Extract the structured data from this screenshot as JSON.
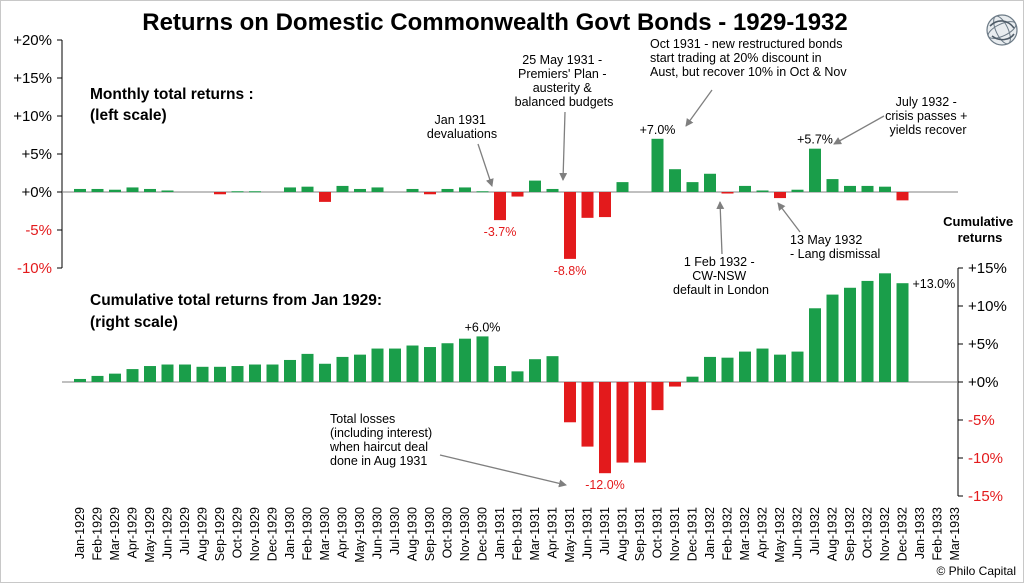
{
  "colors": {
    "positive": "#1a9e4a",
    "negative": "#e31a1c",
    "axis_red": "#e31a1c",
    "ticks_positive": "#000000",
    "annotation_arrow": "#7f7f7f",
    "zero_line": "#808080"
  },
  "logo_icon": "philo-capital-globe-icon",
  "chart_data": {
    "type": "bar",
    "title": "Returns on Domestic Commonwealth Govt Bonds  - 1929-1932",
    "credit": "© Philo Capital",
    "categories": [
      "Jan-1929",
      "Feb-1929",
      "Mar-1929",
      "Apr-1929",
      "May-1929",
      "Jun-1929",
      "Jul-1929",
      "Aug-1929",
      "Sep-1929",
      "Oct-1929",
      "Nov-1929",
      "Dec-1929",
      "Jan-1930",
      "Feb-1930",
      "Mar-1930",
      "Apr-1930",
      "May-1930",
      "Jun-1930",
      "Jul-1930",
      "Aug-1930",
      "Sep-1930",
      "Oct-1930",
      "Nov-1930",
      "Dec-1930",
      "Jan-1931",
      "Feb-1931",
      "Mar-1931",
      "Apr-1931",
      "May-1931",
      "Jun-1931",
      "Jul-1931",
      "Aug-1931",
      "Sep-1931",
      "Oct-1931",
      "Nov-1931",
      "Dec-1931",
      "Jan-1932",
      "Feb-1932",
      "Mar-1932",
      "Apr-1932",
      "May-1932",
      "Jun-1932",
      "Jul-1932",
      "Aug-1932",
      "Sep-1932",
      "Oct-1932",
      "Nov-1932",
      "Dec-1932",
      "Jan-1933",
      "Feb-1933",
      "Mar-1933"
    ],
    "series": [
      {
        "name": "Monthly total returns :",
        "axis": "left",
        "panel_label": [
          "Monthly total returns :",
          "(left scale)"
        ],
        "ylim": [
          -10,
          20
        ],
        "ticks": [
          "+20%",
          "+15%",
          "+10%",
          "+5%",
          "+0%",
          "-5%",
          "-10%"
        ],
        "tick_values": [
          20,
          15,
          10,
          5,
          0,
          -5,
          -10
        ],
        "values": [
          0.4,
          0.4,
          0.3,
          0.6,
          0.4,
          0.2,
          0.0,
          0.0,
          -0.3,
          0.1,
          0.1,
          0.0,
          0.6,
          0.7,
          -1.3,
          0.8,
          0.4,
          0.6,
          0.0,
          0.4,
          -0.3,
          0.4,
          0.6,
          0.1,
          -3.7,
          -0.6,
          1.5,
          0.4,
          -8.8,
          -3.4,
          -3.3,
          1.3,
          0.0,
          7.0,
          3.0,
          1.3,
          2.4,
          -0.2,
          0.8,
          0.2,
          -0.8,
          0.3,
          5.7,
          1.7,
          0.8,
          0.8,
          0.7,
          -1.1,
          null,
          null,
          null
        ]
      },
      {
        "name": "Cumulative total returns from Jan 1929:",
        "axis": "right",
        "panel_label": [
          "Cumulative total returns from Jan 1929:",
          "(right scale)"
        ],
        "axis_title": [
          "Cumulative",
          "returns"
        ],
        "ylim": [
          -15,
          15
        ],
        "ticks": [
          "+15%",
          "+10%",
          "+5%",
          "+0%",
          "-5%",
          "-10%",
          "-15%"
        ],
        "tick_values": [
          15,
          10,
          5,
          0,
          -5,
          -10,
          -15
        ],
        "values": [
          0.4,
          0.8,
          1.1,
          1.7,
          2.1,
          2.3,
          2.3,
          2.0,
          2.0,
          2.1,
          2.3,
          2.3,
          2.9,
          3.7,
          2.4,
          3.3,
          3.6,
          4.4,
          4.4,
          4.8,
          4.6,
          5.1,
          5.7,
          6.0,
          2.1,
          1.4,
          3.0,
          3.4,
          -5.3,
          -8.5,
          -12.0,
          -10.6,
          -10.6,
          -3.7,
          -0.6,
          0.7,
          3.3,
          3.2,
          4.0,
          4.4,
          3.6,
          4.0,
          9.7,
          11.5,
          12.4,
          13.3,
          14.3,
          13.0,
          null,
          null,
          null
        ]
      }
    ],
    "bar_labels": [
      {
        "series": 0,
        "index": 33,
        "text": "+7.0%"
      },
      {
        "series": 0,
        "index": 42,
        "text": "+5.7%"
      },
      {
        "series": 0,
        "index": 24,
        "text": "-3.7%"
      },
      {
        "series": 0,
        "index": 28,
        "text": "-8.8%"
      },
      {
        "series": 1,
        "index": 23,
        "text": "+6.0%"
      },
      {
        "series": 1,
        "index": 47,
        "text": "+13.0%"
      },
      {
        "series": 1,
        "index": 30,
        "text": "-12.0%"
      }
    ],
    "annotations": [
      {
        "lines": [
          "Jan 1931",
          "devaluations"
        ]
      },
      {
        "lines": [
          "25 May 1931 -",
          "Premiers' Plan -",
          "austerity &",
          "balanced budgets"
        ]
      },
      {
        "lines": [
          "Oct 1931 - new restructured bonds",
          "start trading at 20% discount in",
          "Aust, but recover 10% in Oct & Nov"
        ]
      },
      {
        "lines": [
          "July 1932 -",
          "crisis passes +",
          "yields recover"
        ]
      },
      {
        "lines": [
          "1 Feb 1932 -",
          "CW-NSW",
          "default in London"
        ]
      },
      {
        "lines": [
          "13 May 1932",
          "- Lang dismissal"
        ]
      },
      {
        "lines": [
          "Total losses",
          "(including interest)",
          "when haircut deal",
          "done in Aug 1931"
        ]
      }
    ],
    "legend": "none",
    "grid": false
  }
}
